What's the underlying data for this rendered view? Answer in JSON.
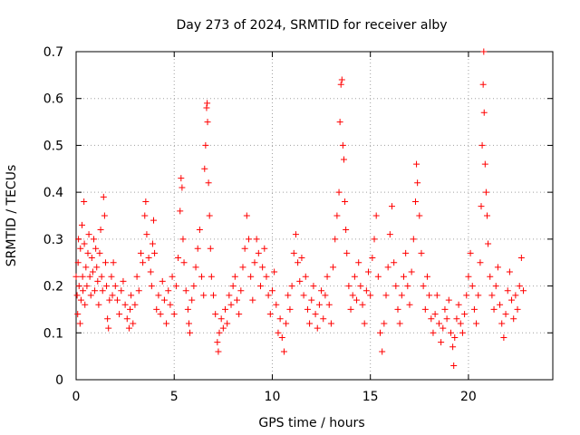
{
  "chart_data": {
    "type": "scatter",
    "title": "Day 273 of 2024, SRMTID for receiver alby",
    "xlabel": "GPS time / hours",
    "ylabel": "SRMTID / TECUs",
    "xlim": [
      0,
      24.3
    ],
    "ylim": [
      0,
      0.7
    ],
    "grid": true,
    "marker": "plus",
    "color": "#ff0000",
    "x_ticks": [
      0,
      5,
      10,
      15,
      20
    ],
    "x_tick_labels": [
      "0",
      "5",
      "10",
      "15",
      "20"
    ],
    "y_ticks": [
      0,
      0.1,
      0.2,
      0.3,
      0.4,
      0.5,
      0.6,
      0.7
    ],
    "y_tick_labels": [
      "0",
      "0.1",
      "0.2",
      "0.3",
      "0.4",
      "0.5",
      "0.6",
      "0.7"
    ],
    "series": [
      {
        "name": "SRMTID",
        "points": [
          [
            0.0,
            0.22
          ],
          [
            0.05,
            0.18
          ],
          [
            0.08,
            0.14
          ],
          [
            0.1,
            0.25
          ],
          [
            0.12,
            0.3
          ],
          [
            0.15,
            0.2
          ],
          [
            0.2,
            0.12
          ],
          [
            0.22,
            0.28
          ],
          [
            0.25,
            0.17
          ],
          [
            0.3,
            0.33
          ],
          [
            0.33,
            0.22
          ],
          [
            0.35,
            0.19
          ],
          [
            0.4,
            0.38
          ],
          [
            0.42,
            0.29
          ],
          [
            0.45,
            0.16
          ],
          [
            0.5,
            0.24
          ],
          [
            0.55,
            0.2
          ],
          [
            0.6,
            0.27
          ],
          [
            0.65,
            0.31
          ],
          [
            0.7,
            0.22
          ],
          [
            0.75,
            0.18
          ],
          [
            0.8,
            0.26
          ],
          [
            0.85,
            0.23
          ],
          [
            0.9,
            0.3
          ],
          [
            0.95,
            0.19
          ],
          [
            1.0,
            0.28
          ],
          [
            1.05,
            0.24
          ],
          [
            1.1,
            0.21
          ],
          [
            1.15,
            0.16
          ],
          [
            1.2,
            0.27
          ],
          [
            1.25,
            0.32
          ],
          [
            1.3,
            0.22
          ],
          [
            1.35,
            0.19
          ],
          [
            1.4,
            0.39
          ],
          [
            1.45,
            0.35
          ],
          [
            1.5,
            0.25
          ],
          [
            1.55,
            0.2
          ],
          [
            1.6,
            0.13
          ],
          [
            1.65,
            0.11
          ],
          [
            1.7,
            0.17
          ],
          [
            1.8,
            0.22
          ],
          [
            1.85,
            0.18
          ],
          [
            1.9,
            0.25
          ],
          [
            2.0,
            0.2
          ],
          [
            2.1,
            0.17
          ],
          [
            2.2,
            0.14
          ],
          [
            2.3,
            0.19
          ],
          [
            2.4,
            0.21
          ],
          [
            2.5,
            0.16
          ],
          [
            2.6,
            0.13
          ],
          [
            2.7,
            0.11
          ],
          [
            2.75,
            0.15
          ],
          [
            2.8,
            0.18
          ],
          [
            2.9,
            0.12
          ],
          [
            3.0,
            0.16
          ],
          [
            3.1,
            0.22
          ],
          [
            3.2,
            0.19
          ],
          [
            3.3,
            0.27
          ],
          [
            3.4,
            0.25
          ],
          [
            3.5,
            0.35
          ],
          [
            3.55,
            0.38
          ],
          [
            3.6,
            0.31
          ],
          [
            3.7,
            0.26
          ],
          [
            3.8,
            0.23
          ],
          [
            3.85,
            0.2
          ],
          [
            3.9,
            0.29
          ],
          [
            3.95,
            0.34
          ],
          [
            4.0,
            0.27
          ],
          [
            4.1,
            0.15
          ],
          [
            4.2,
            0.18
          ],
          [
            4.3,
            0.14
          ],
          [
            4.4,
            0.21
          ],
          [
            4.5,
            0.17
          ],
          [
            4.6,
            0.12
          ],
          [
            4.7,
            0.19
          ],
          [
            4.8,
            0.16
          ],
          [
            4.9,
            0.22
          ],
          [
            5.0,
            0.14
          ],
          [
            5.1,
            0.2
          ],
          [
            5.2,
            0.26
          ],
          [
            5.3,
            0.36
          ],
          [
            5.35,
            0.43
          ],
          [
            5.4,
            0.41
          ],
          [
            5.45,
            0.3
          ],
          [
            5.5,
            0.25
          ],
          [
            5.6,
            0.19
          ],
          [
            5.7,
            0.15
          ],
          [
            5.75,
            0.12
          ],
          [
            5.8,
            0.1
          ],
          [
            5.9,
            0.17
          ],
          [
            6.0,
            0.2
          ],
          [
            6.1,
            0.24
          ],
          [
            6.2,
            0.28
          ],
          [
            6.3,
            0.32
          ],
          [
            6.4,
            0.22
          ],
          [
            6.5,
            0.18
          ],
          [
            6.55,
            0.45
          ],
          [
            6.6,
            0.5
          ],
          [
            6.65,
            0.58
          ],
          [
            6.68,
            0.59
          ],
          [
            6.7,
            0.55
          ],
          [
            6.75,
            0.42
          ],
          [
            6.8,
            0.35
          ],
          [
            6.85,
            0.28
          ],
          [
            6.9,
            0.22
          ],
          [
            7.0,
            0.18
          ],
          [
            7.1,
            0.14
          ],
          [
            7.2,
            0.08
          ],
          [
            7.25,
            0.06
          ],
          [
            7.3,
            0.1
          ],
          [
            7.4,
            0.13
          ],
          [
            7.5,
            0.11
          ],
          [
            7.6,
            0.15
          ],
          [
            7.7,
            0.12
          ],
          [
            7.8,
            0.18
          ],
          [
            7.9,
            0.16
          ],
          [
            8.0,
            0.2
          ],
          [
            8.1,
            0.22
          ],
          [
            8.2,
            0.17
          ],
          [
            8.3,
            0.14
          ],
          [
            8.4,
            0.19
          ],
          [
            8.5,
            0.24
          ],
          [
            8.6,
            0.28
          ],
          [
            8.7,
            0.35
          ],
          [
            8.8,
            0.3
          ],
          [
            8.9,
            0.22
          ],
          [
            9.0,
            0.17
          ],
          [
            9.1,
            0.25
          ],
          [
            9.2,
            0.3
          ],
          [
            9.3,
            0.27
          ],
          [
            9.4,
            0.2
          ],
          [
            9.5,
            0.24
          ],
          [
            9.6,
            0.28
          ],
          [
            9.7,
            0.22
          ],
          [
            9.8,
            0.18
          ],
          [
            9.9,
            0.14
          ],
          [
            10.0,
            0.19
          ],
          [
            10.1,
            0.23
          ],
          [
            10.2,
            0.16
          ],
          [
            10.3,
            0.1
          ],
          [
            10.4,
            0.13
          ],
          [
            10.5,
            0.09
          ],
          [
            10.6,
            0.06
          ],
          [
            10.7,
            0.12
          ],
          [
            10.8,
            0.18
          ],
          [
            10.9,
            0.15
          ],
          [
            11.0,
            0.2
          ],
          [
            11.1,
            0.27
          ],
          [
            11.2,
            0.31
          ],
          [
            11.3,
            0.25
          ],
          [
            11.4,
            0.21
          ],
          [
            11.5,
            0.26
          ],
          [
            11.6,
            0.18
          ],
          [
            11.7,
            0.22
          ],
          [
            11.8,
            0.15
          ],
          [
            11.9,
            0.12
          ],
          [
            12.0,
            0.17
          ],
          [
            12.1,
            0.2
          ],
          [
            12.2,
            0.14
          ],
          [
            12.3,
            0.11
          ],
          [
            12.4,
            0.16
          ],
          [
            12.5,
            0.19
          ],
          [
            12.6,
            0.13
          ],
          [
            12.7,
            0.18
          ],
          [
            12.8,
            0.22
          ],
          [
            12.9,
            0.16
          ],
          [
            13.0,
            0.12
          ],
          [
            13.1,
            0.24
          ],
          [
            13.2,
            0.3
          ],
          [
            13.3,
            0.35
          ],
          [
            13.4,
            0.4
          ],
          [
            13.45,
            0.55
          ],
          [
            13.5,
            0.63
          ],
          [
            13.55,
            0.64
          ],
          [
            13.6,
            0.5
          ],
          [
            13.65,
            0.47
          ],
          [
            13.7,
            0.38
          ],
          [
            13.75,
            0.32
          ],
          [
            13.8,
            0.27
          ],
          [
            13.9,
            0.2
          ],
          [
            14.0,
            0.15
          ],
          [
            14.1,
            0.18
          ],
          [
            14.2,
            0.22
          ],
          [
            14.3,
            0.17
          ],
          [
            14.4,
            0.25
          ],
          [
            14.5,
            0.2
          ],
          [
            14.6,
            0.16
          ],
          [
            14.7,
            0.12
          ],
          [
            14.8,
            0.19
          ],
          [
            14.9,
            0.23
          ],
          [
            15.0,
            0.18
          ],
          [
            15.1,
            0.26
          ],
          [
            15.2,
            0.3
          ],
          [
            15.3,
            0.35
          ],
          [
            15.4,
            0.22
          ],
          [
            15.5,
            0.1
          ],
          [
            15.6,
            0.06
          ],
          [
            15.7,
            0.12
          ],
          [
            15.8,
            0.18
          ],
          [
            15.9,
            0.24
          ],
          [
            16.0,
            0.31
          ],
          [
            16.1,
            0.37
          ],
          [
            16.2,
            0.25
          ],
          [
            16.3,
            0.2
          ],
          [
            16.4,
            0.15
          ],
          [
            16.5,
            0.12
          ],
          [
            16.6,
            0.18
          ],
          [
            16.7,
            0.22
          ],
          [
            16.8,
            0.27
          ],
          [
            16.9,
            0.2
          ],
          [
            17.0,
            0.16
          ],
          [
            17.1,
            0.23
          ],
          [
            17.2,
            0.3
          ],
          [
            17.3,
            0.38
          ],
          [
            17.35,
            0.46
          ],
          [
            17.4,
            0.42
          ],
          [
            17.5,
            0.35
          ],
          [
            17.6,
            0.27
          ],
          [
            17.7,
            0.2
          ],
          [
            17.8,
            0.15
          ],
          [
            17.9,
            0.22
          ],
          [
            18.0,
            0.18
          ],
          [
            18.1,
            0.13
          ],
          [
            18.2,
            0.1
          ],
          [
            18.3,
            0.14
          ],
          [
            18.4,
            0.18
          ],
          [
            18.5,
            0.12
          ],
          [
            18.6,
            0.08
          ],
          [
            18.7,
            0.11
          ],
          [
            18.8,
            0.15
          ],
          [
            18.9,
            0.13
          ],
          [
            19.0,
            0.17
          ],
          [
            19.1,
            0.1
          ],
          [
            19.2,
            0.07
          ],
          [
            19.25,
            0.03
          ],
          [
            19.3,
            0.09
          ],
          [
            19.4,
            0.13
          ],
          [
            19.5,
            0.16
          ],
          [
            19.6,
            0.12
          ],
          [
            19.7,
            0.1
          ],
          [
            19.8,
            0.14
          ],
          [
            19.9,
            0.18
          ],
          [
            20.0,
            0.22
          ],
          [
            20.1,
            0.27
          ],
          [
            20.2,
            0.2
          ],
          [
            20.3,
            0.15
          ],
          [
            20.4,
            0.12
          ],
          [
            20.5,
            0.18
          ],
          [
            20.6,
            0.25
          ],
          [
            20.65,
            0.37
          ],
          [
            20.7,
            0.5
          ],
          [
            20.75,
            0.63
          ],
          [
            20.78,
            0.7
          ],
          [
            20.8,
            0.57
          ],
          [
            20.85,
            0.46
          ],
          [
            20.9,
            0.4
          ],
          [
            20.95,
            0.35
          ],
          [
            21.0,
            0.29
          ],
          [
            21.1,
            0.22
          ],
          [
            21.2,
            0.18
          ],
          [
            21.3,
            0.15
          ],
          [
            21.4,
            0.2
          ],
          [
            21.5,
            0.24
          ],
          [
            21.6,
            0.16
          ],
          [
            21.7,
            0.12
          ],
          [
            21.8,
            0.09
          ],
          [
            21.9,
            0.14
          ],
          [
            22.0,
            0.19
          ],
          [
            22.1,
            0.23
          ],
          [
            22.2,
            0.17
          ],
          [
            22.3,
            0.13
          ],
          [
            22.4,
            0.18
          ],
          [
            22.5,
            0.15
          ],
          [
            22.6,
            0.2
          ],
          [
            22.7,
            0.26
          ],
          [
            22.8,
            0.19
          ]
        ]
      }
    ]
  }
}
